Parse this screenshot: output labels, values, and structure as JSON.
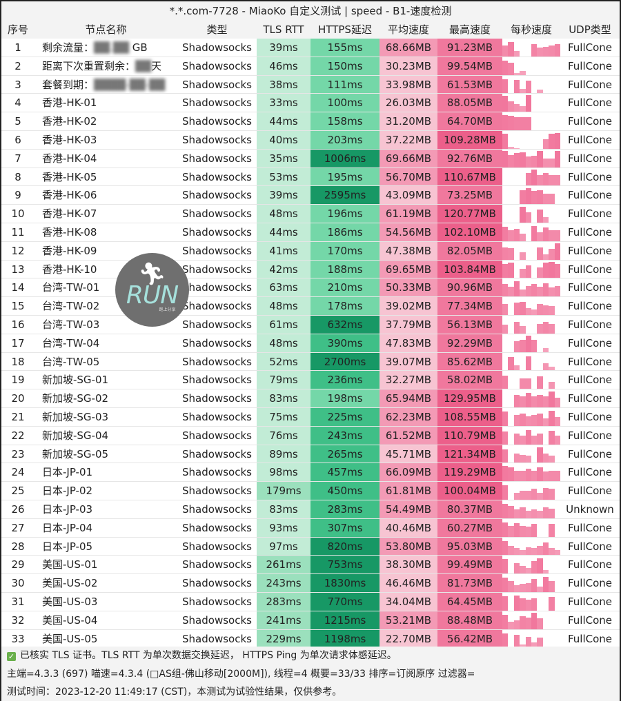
{
  "title": "*.*.com-7728 - MiaoKo 自定义测试 | speed - B1-速度检测",
  "columns": [
    "序号",
    "节点名称",
    "类型",
    "TLS RTT",
    "HTTPS延迟",
    "平均速度",
    "最高速度",
    "每秒速度",
    "UDP类型"
  ],
  "colors": {
    "tls_light": "#c2ecd6",
    "tls_mid": "#9be0bd",
    "https_light": "#74d7a8",
    "https_mid": "#3fbf87",
    "https_dark": "#179865",
    "avg_light": "#f7c4d2",
    "avg_mid": "#f39ab5",
    "max_mid": "#f0789d",
    "max_dark": "#ec5f8a",
    "bar": "#f06a93"
  },
  "rows": [
    {
      "idx": "1",
      "name": "剩余流量：",
      "blur": "██.██",
      "suffix": " GB",
      "type": "Shadowsocks",
      "tls": "39ms",
      "https": "155ms",
      "avg": "68.66MB",
      "max": "91.23MB",
      "udp": "FullCone",
      "bars": [
        60,
        80,
        30,
        0,
        0,
        70,
        50,
        55,
        60,
        70
      ]
    },
    {
      "idx": "2",
      "name": "距离下次重置剩余：",
      "blur": "██",
      "suffix": "天",
      "type": "Shadowsocks",
      "tls": "46ms",
      "https": "150ms",
      "avg": "30.23MB",
      "max": "99.54MB",
      "udp": "FullCone",
      "bars": [
        80,
        70,
        10,
        20,
        0,
        0,
        0,
        0,
        0,
        0
      ]
    },
    {
      "idx": "3",
      "name": "套餐到期：",
      "blur": "████-██-██",
      "suffix": "",
      "type": "Shadowsocks",
      "tls": "38ms",
      "https": "111ms",
      "avg": "33.98MB",
      "max": "61.53MB",
      "udp": "FullCone",
      "bars": [
        80,
        0,
        75,
        25,
        70,
        0,
        20,
        0,
        0,
        0
      ]
    },
    {
      "idx": "4",
      "name": "香港-HK-01",
      "type": "Shadowsocks",
      "tls": "33ms",
      "https": "100ms",
      "avg": "26.03MB",
      "max": "88.05MB",
      "udp": "FullCone",
      "bars": [
        90,
        60,
        45,
        30,
        95,
        0,
        0,
        0,
        0,
        0
      ]
    },
    {
      "idx": "5",
      "name": "香港-HK-02",
      "type": "Shadowsocks",
      "tls": "44ms",
      "https": "158ms",
      "avg": "31.20MB",
      "max": "64.70MB",
      "udp": "FullCone",
      "bars": [
        85,
        80,
        75,
        75,
        75,
        0,
        0,
        0,
        0,
        0
      ]
    },
    {
      "idx": "6",
      "name": "香港-HK-03",
      "type": "Shadowsocks",
      "tls": "40ms",
      "https": "203ms",
      "avg": "37.22MB",
      "max": "109.28MB",
      "udp": "FullCone",
      "bars": [
        85,
        10,
        5,
        0,
        0,
        0,
        0,
        55,
        85,
        90
      ]
    },
    {
      "idx": "7",
      "name": "香港-HK-04",
      "type": "Shadowsocks",
      "tls": "35ms",
      "https": "1006ms",
      "avg": "69.66MB",
      "max": "92.76MB",
      "udp": "FullCone",
      "bars": [
        90,
        70,
        80,
        85,
        60,
        65,
        90,
        50,
        50,
        90
      ]
    },
    {
      "idx": "8",
      "name": "香港-HK-05",
      "type": "Shadowsocks",
      "tls": "53ms",
      "https": "195ms",
      "avg": "56.70MB",
      "max": "110.67MB",
      "udp": "FullCone",
      "bars": [
        0,
        0,
        0,
        0,
        70,
        90,
        60,
        70,
        60,
        60
      ]
    },
    {
      "idx": "9",
      "name": "香港-HK-06",
      "type": "Shadowsocks",
      "tls": "39ms",
      "https": "2595ms",
      "avg": "43.09MB",
      "max": "73.25MB",
      "udp": "FullCone",
      "bars": [
        0,
        0,
        0,
        80,
        90,
        75,
        80,
        60,
        60,
        0
      ]
    },
    {
      "idx": "10",
      "name": "香港-HK-07",
      "type": "Shadowsocks",
      "tls": "48ms",
      "https": "196ms",
      "avg": "61.19MB",
      "max": "120.77MB",
      "udp": "FullCone",
      "bars": [
        0,
        0,
        0,
        90,
        60,
        0,
        75,
        30,
        0,
        0
      ]
    },
    {
      "idx": "11",
      "name": "香港-HK-08",
      "type": "Shadowsocks",
      "tls": "44ms",
      "https": "186ms",
      "avg": "54.56MB",
      "max": "102.10MB",
      "udp": "FullCone",
      "bars": [
        80,
        60,
        70,
        40,
        0,
        85,
        50,
        75,
        60,
        60
      ]
    },
    {
      "idx": "12",
      "name": "香港-HK-09",
      "type": "Shadowsocks",
      "tls": "41ms",
      "https": "170ms",
      "avg": "47.38MB",
      "max": "82.05MB",
      "udp": "FullCone",
      "bars": [
        70,
        65,
        0,
        40,
        0,
        0,
        70,
        30,
        60,
        90
      ]
    },
    {
      "idx": "13",
      "name": "香港-HK-10",
      "type": "Shadowsocks",
      "tls": "42ms",
      "https": "188ms",
      "avg": "69.65MB",
      "max": "103.84MB",
      "udp": "FullCone",
      "bars": [
        80,
        85,
        0,
        50,
        70,
        0,
        60,
        85,
        90,
        80
      ]
    },
    {
      "idx": "14",
      "name": "台湾-TW-01",
      "type": "Shadowsocks",
      "tls": "63ms",
      "https": "210ms",
      "avg": "50.33MB",
      "max": "90.96MB",
      "udp": "FullCone",
      "bars": [
        70,
        55,
        85,
        40,
        60,
        70,
        55,
        75,
        50,
        60
      ]
    },
    {
      "idx": "15",
      "name": "台湾-TW-02",
      "type": "Shadowsocks",
      "tls": "48ms",
      "https": "178ms",
      "avg": "39.02MB",
      "max": "77.34MB",
      "udp": "FullCone",
      "bars": [
        60,
        0,
        70,
        75,
        40,
        30,
        60,
        55,
        50,
        0
      ]
    },
    {
      "idx": "16",
      "name": "台湾-TW-03",
      "type": "Shadowsocks",
      "tls": "61ms",
      "https": "632ms",
      "avg": "37.79MB",
      "max": "56.13MB",
      "udp": "FullCone",
      "bars": [
        50,
        0,
        65,
        40,
        0,
        0,
        55,
        65,
        55,
        0
      ]
    },
    {
      "idx": "17",
      "name": "台湾-TW-04",
      "type": "Shadowsocks",
      "tls": "48ms",
      "https": "390ms",
      "avg": "47.83MB",
      "max": "92.29MB",
      "udp": "FullCone",
      "bars": [
        0,
        0,
        60,
        70,
        90,
        70,
        0,
        20,
        0,
        0
      ]
    },
    {
      "idx": "18",
      "name": "台湾-TW-05",
      "type": "Shadowsocks",
      "tls": "52ms",
      "https": "2700ms",
      "avg": "39.07MB",
      "max": "85.62MB",
      "udp": "FullCone",
      "bars": [
        0,
        75,
        30,
        0,
        80,
        0,
        0,
        40,
        20,
        0
      ]
    },
    {
      "idx": "19",
      "name": "新加坡-SG-01",
      "type": "Shadowsocks",
      "tls": "79ms",
      "https": "236ms",
      "avg": "32.27MB",
      "max": "58.02MB",
      "udp": "FullCone",
      "bars": [
        75,
        0,
        0,
        60,
        60,
        0,
        70,
        0,
        40,
        0
      ]
    },
    {
      "idx": "20",
      "name": "新加坡-SG-02",
      "type": "Shadowsocks",
      "tls": "83ms",
      "https": "198ms",
      "avg": "65.94MB",
      "max": "129.95MB",
      "udp": "FullCone",
      "bars": [
        0,
        0,
        70,
        60,
        80,
        60,
        70,
        60,
        90,
        55
      ]
    },
    {
      "idx": "21",
      "name": "新加坡-SG-03",
      "type": "Shadowsocks",
      "tls": "75ms",
      "https": "225ms",
      "avg": "62.23MB",
      "max": "108.55MB",
      "udp": "FullCone",
      "bars": [
        80,
        0,
        60,
        70,
        55,
        60,
        70,
        40,
        85,
        50
      ]
    },
    {
      "idx": "22",
      "name": "新加坡-SG-04",
      "type": "Shadowsocks",
      "tls": "76ms",
      "https": "243ms",
      "avg": "61.52MB",
      "max": "110.79MB",
      "udp": "FullCone",
      "bars": [
        70,
        0,
        60,
        50,
        80,
        50,
        60,
        0,
        75,
        50
      ]
    },
    {
      "idx": "23",
      "name": "新加坡-SG-05",
      "type": "Shadowsocks",
      "tls": "89ms",
      "https": "265ms",
      "avg": "45.71MB",
      "max": "121.34MB",
      "udp": "FullCone",
      "bars": [
        75,
        0,
        50,
        45,
        40,
        0,
        85,
        50,
        40,
        0
      ]
    },
    {
      "idx": "24",
      "name": "日本-JP-01",
      "type": "Shadowsocks",
      "tls": "98ms",
      "https": "457ms",
      "avg": "66.09MB",
      "max": "119.29MB",
      "udp": "FullCone",
      "bars": [
        85,
        80,
        60,
        60,
        70,
        60,
        80,
        55,
        60,
        60
      ]
    },
    {
      "idx": "25",
      "name": "日本-JP-02",
      "type": "Shadowsocks",
      "tls": "179ms",
      "https": "450ms",
      "avg": "61.81MB",
      "max": "100.04MB",
      "udp": "FullCone",
      "bars": [
        80,
        0,
        40,
        50,
        50,
        60,
        40,
        65,
        60,
        0
      ]
    },
    {
      "idx": "26",
      "name": "日本-JP-03",
      "type": "Shadowsocks",
      "tls": "83ms",
      "https": "283ms",
      "avg": "54.49MB",
      "max": "80.37MB",
      "udp": "Unknown",
      "bars": [
        80,
        70,
        50,
        60,
        40,
        50,
        40,
        60,
        55,
        0
      ]
    },
    {
      "idx": "27",
      "name": "日本-JP-04",
      "type": "Shadowsocks",
      "tls": "93ms",
      "https": "307ms",
      "avg": "40.46MB",
      "max": "60.27MB",
      "udp": "FullCone",
      "bars": [
        80,
        60,
        75,
        60,
        55,
        70,
        0,
        0,
        70,
        0
      ]
    },
    {
      "idx": "28",
      "name": "日本-JP-05",
      "type": "Shadowsocks",
      "tls": "97ms",
      "https": "820ms",
      "avg": "53.80MB",
      "max": "95.03MB",
      "udp": "FullCone",
      "bars": [
        80,
        50,
        40,
        30,
        45,
        40,
        50,
        70,
        40,
        30
      ]
    },
    {
      "idx": "29",
      "name": "美国-US-01",
      "type": "Shadowsocks",
      "tls": "261ms",
      "https": "753ms",
      "avg": "38.30MB",
      "max": "99.49MB",
      "udp": "FullCone",
      "bars": [
        80,
        0,
        60,
        45,
        30,
        70,
        85,
        20,
        0,
        0
      ]
    },
    {
      "idx": "30",
      "name": "美国-US-02",
      "type": "Shadowsocks",
      "tls": "243ms",
      "https": "1830ms",
      "avg": "46.46MB",
      "max": "81.73MB",
      "udp": "FullCone",
      "bars": [
        80,
        60,
        40,
        45,
        50,
        75,
        30,
        85,
        60,
        0
      ]
    },
    {
      "idx": "31",
      "name": "美国-US-03",
      "type": "Shadowsocks",
      "tls": "283ms",
      "https": "770ms",
      "avg": "34.04MB",
      "max": "64.45MB",
      "udp": "FullCone",
      "bars": [
        80,
        0,
        85,
        70,
        60,
        70,
        0,
        0,
        75,
        0
      ]
    },
    {
      "idx": "32",
      "name": "美国-US-04",
      "type": "Shadowsocks",
      "tls": "241ms",
      "https": "1215ms",
      "avg": "53.21MB",
      "max": "88.48MB",
      "udp": "FullCone",
      "bars": [
        80,
        40,
        50,
        70,
        65,
        90,
        60,
        0,
        0,
        0
      ]
    },
    {
      "idx": "33",
      "name": "美国-US-05",
      "type": "Shadowsocks",
      "tls": "229ms",
      "https": "1198ms",
      "avg": "22.70MB",
      "max": "56.42MB",
      "udp": "FullCone",
      "bars": [
        80,
        0,
        70,
        15,
        60,
        30,
        55,
        0,
        0,
        0
      ]
    }
  ],
  "footer": {
    "line1": "已核实 TLS 证书。TLS RTT 为单次数据交换延迟， HTTPS Ping 为单次请求体感延迟。",
    "line2": "主端=4.3.3 (697) 喵速=4.3.4 (□AS组-佛山移动[2000M]), 线程=4 概要=33/33 排序=订阅原序 过滤器=",
    "line3": "测试时间：2023-12-20 11:49:17 (CST)，本测试为试验性结果，仅供参考。"
  },
  "logo": {
    "text": "RUN",
    "sub": "跑上分享"
  }
}
